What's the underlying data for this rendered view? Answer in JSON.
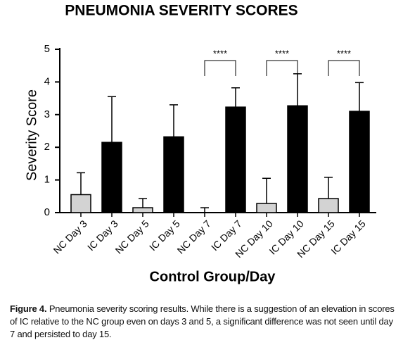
{
  "chart_data": {
    "type": "bar",
    "title": "PNEUMONIA SEVERITY SCORES",
    "x_label": "Control Group/Day",
    "y_label": "Severity Score",
    "categories": [
      "NC Day 3",
      "IC Day 3",
      "NC Day 5",
      "IC Day 5",
      "NC Day 7",
      "IC Day 7",
      "NC Day 10",
      "IC Day 10",
      "NC Day 15",
      "IC Day 15"
    ],
    "values": [
      0.55,
      2.15,
      0.15,
      2.32,
      0,
      3.23,
      0.28,
      3.27,
      0.43,
      3.1
    ],
    "errors": [
      0.67,
      1.4,
      0.28,
      0.98,
      0.15,
      0.59,
      0.77,
      0.98,
      0.65,
      0.88
    ],
    "colors": [
      "#d3d3d3",
      "#000000",
      "#d3d3d3",
      "#000000",
      "#d3d3d3",
      "#000000",
      "#d3d3d3",
      "#000000",
      "#d3d3d3",
      "#000000"
    ],
    "ylim": [
      0,
      5
    ],
    "yticks": [
      0,
      1,
      2,
      3,
      4,
      5
    ],
    "significance": [
      {
        "text": "****",
        "pair": [
          4,
          5
        ]
      },
      {
        "text": "****",
        "pair": [
          6,
          7
        ]
      },
      {
        "text": "****",
        "pair": [
          8,
          9
        ]
      }
    ]
  },
  "caption": {
    "label": "Figure 4.",
    "text": "Pneumonia severity scoring results. While there is a suggestion of an elevation in scores of IC relative to the NC group even on days 3 and 5, a significant difference was not seen until day 7 and persisted to day 15."
  }
}
